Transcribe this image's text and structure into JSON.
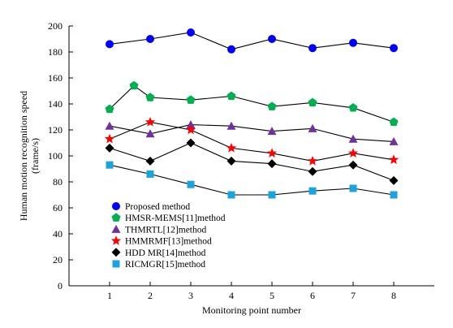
{
  "chart_data": {
    "type": "line",
    "title": "",
    "xlabel": "Monitoring point number",
    "ylabel_line1": "Human motion recognition speed",
    "ylabel_line2": "(frame/s)",
    "x": [
      1,
      2,
      3,
      4,
      5,
      6,
      7,
      8
    ],
    "xticks": [
      "1",
      "2",
      "3",
      "4",
      "5",
      "6",
      "7",
      "8"
    ],
    "xlim": [
      0,
      9
    ],
    "ylim": [
      0,
      200
    ],
    "yticks": [
      "0",
      "20",
      "40",
      "60",
      "80",
      "100",
      "120",
      "140",
      "160",
      "180",
      "200"
    ],
    "grid": false,
    "legend_position": "bottom-left",
    "series": [
      {
        "name": "Proposed method",
        "marker": "circle",
        "color": "#0000ff",
        "x": [
          1,
          2,
          3,
          4,
          5,
          6,
          7,
          8
        ],
        "values": [
          186,
          190,
          195,
          182,
          190,
          183,
          187,
          183
        ]
      },
      {
        "name": "HMSR-MEMS[11]method",
        "marker": "pentagon",
        "color": "#00b050",
        "x": [
          1,
          1.6,
          2,
          3,
          4,
          5,
          6,
          7,
          8
        ],
        "values": [
          136,
          154,
          145,
          143,
          146,
          138,
          141,
          137,
          126
        ]
      },
      {
        "name": "THMRTL[12]method",
        "marker": "triangle",
        "color": "#7030a0",
        "x": [
          1,
          2,
          3,
          4,
          5,
          6,
          7,
          8
        ],
        "values": [
          123,
          117,
          124,
          123,
          119,
          121,
          113,
          111
        ]
      },
      {
        "name": "HMMRMF[13]method",
        "marker": "star",
        "color": "#ff0000",
        "x": [
          1,
          2,
          3,
          4,
          5,
          6,
          7,
          8
        ],
        "values": [
          113,
          126,
          120,
          106,
          102,
          96,
          102,
          97
        ]
      },
      {
        "name": "HDD MR[14]method",
        "marker": "diamond",
        "color": "#000000",
        "x": [
          1,
          2,
          3,
          4,
          5,
          6,
          7,
          8
        ],
        "values": [
          106,
          96,
          110,
          96,
          94,
          88,
          93,
          81
        ]
      },
      {
        "name": "RICMGR[15]method",
        "marker": "square",
        "color": "#1aa3dc",
        "x": [
          1,
          2,
          3,
          4,
          5,
          6,
          7,
          8
        ],
        "values": [
          93,
          86,
          78,
          70,
          70,
          73,
          75,
          70
        ]
      }
    ]
  }
}
